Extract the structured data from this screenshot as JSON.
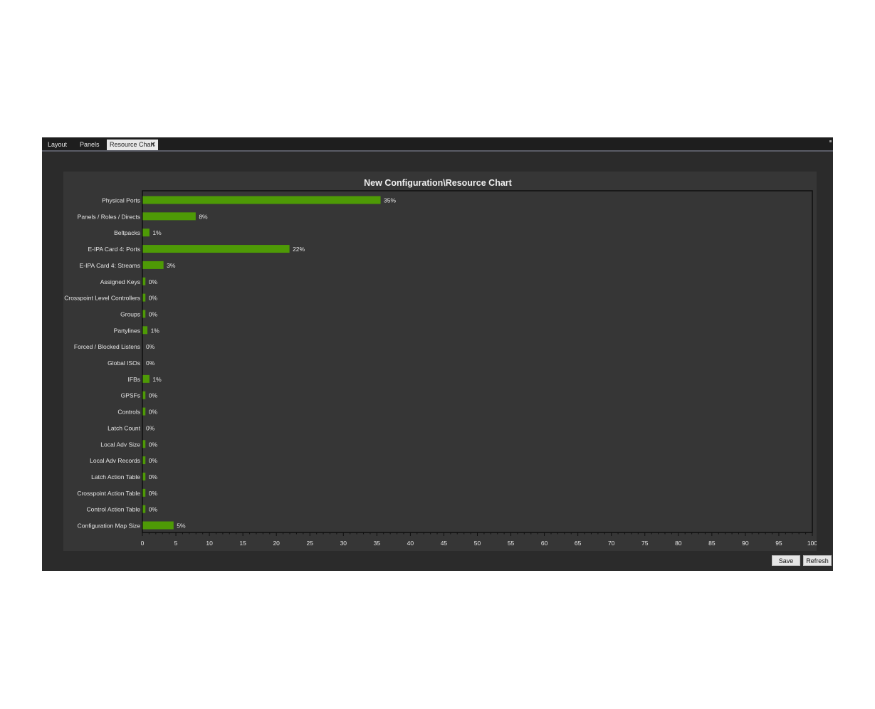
{
  "tabs": [
    {
      "label": "Layout"
    },
    {
      "label": "Panels"
    },
    {
      "label": "Resource Chart",
      "close_icon": "close-icon"
    }
  ],
  "buttons": {
    "save": "Save",
    "refresh": "Refresh"
  },
  "colors": {
    "bar": "#4e9a06",
    "background": "#2b2b2b",
    "chart_bg": "#363636",
    "text": "#e6e6e6"
  },
  "chart_data": {
    "type": "bar",
    "orientation": "horizontal",
    "title": "New Configuration\\Resource Chart",
    "categories": [
      "Physical Ports",
      "Panels / Roles / Directs",
      "Beltpacks",
      "E-IPA Card 4: Ports",
      "E-IPA Card 4: Streams",
      "Assigned Keys",
      "Crosspoint Level Controllers",
      "Groups",
      "Partylines",
      "Forced / Blocked Listens",
      "Global ISOs",
      "IFBs",
      "GPSFs",
      "Controls",
      "Latch Count",
      "Local Adv Size",
      "Local Adv Records",
      "Latch Action Table",
      "Crosspoint Action Table",
      "Control Action Table",
      "Configuration Map Size"
    ],
    "values": [
      35.5,
      7.9,
      1.0,
      21.9,
      3.1,
      0.4,
      0.4,
      0.4,
      0.7,
      0,
      0,
      1.0,
      0.4,
      0.4,
      0,
      0.4,
      0.4,
      0.4,
      0.4,
      0.4,
      4.6
    ],
    "value_labels": [
      "35%",
      "8%",
      "1%",
      "22%",
      "3%",
      "0%",
      "0%",
      "0%",
      "1%",
      "0%",
      "0%",
      "1%",
      "0%",
      "0%",
      "0%",
      "0%",
      "0%",
      "0%",
      "0%",
      "0%",
      "5%"
    ],
    "xlim": [
      0,
      100
    ],
    "xticks": [
      0,
      5,
      10,
      15,
      20,
      25,
      30,
      35,
      40,
      45,
      50,
      55,
      60,
      65,
      70,
      75,
      80,
      85,
      90,
      95,
      100
    ],
    "xlabel": "",
    "ylabel": ""
  }
}
